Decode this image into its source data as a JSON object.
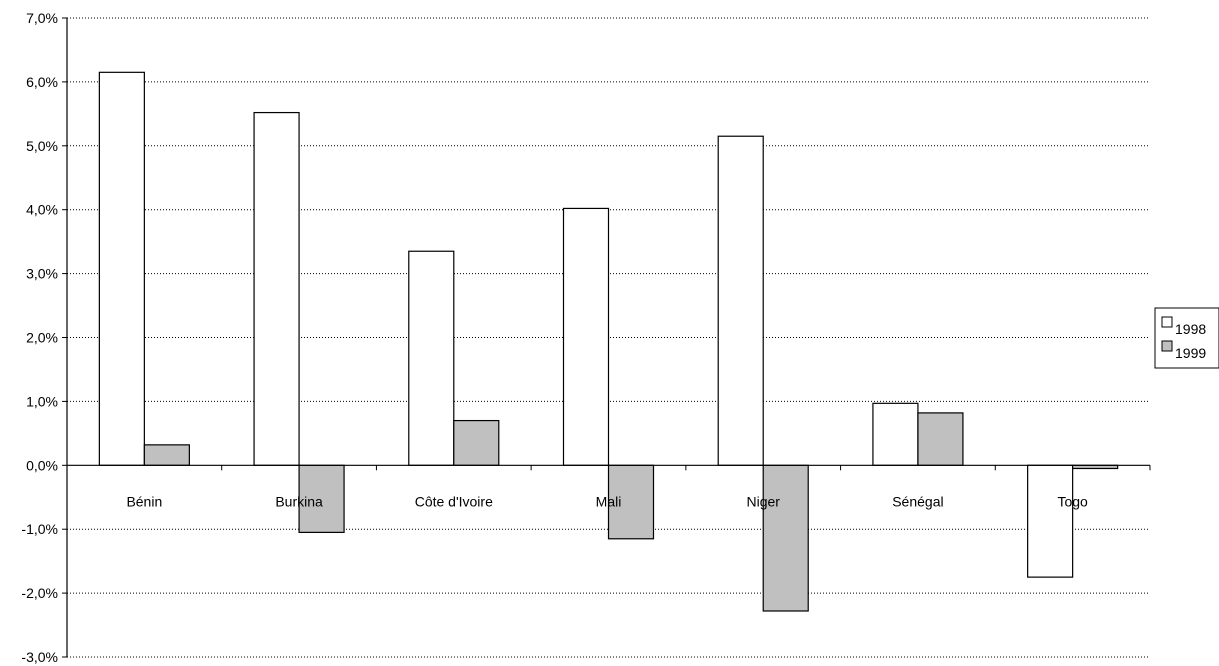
{
  "chart_data": {
    "type": "bar",
    "categories": [
      "Bénin",
      "Burkina",
      "Côte d'Ivoire",
      "Mali",
      "Niger",
      "Sénégal",
      "Togo"
    ],
    "series": [
      {
        "name": "1998",
        "values": [
          6.15,
          5.52,
          3.35,
          4.02,
          5.15,
          0.97,
          -1.75
        ],
        "color": "#ffffff"
      },
      {
        "name": "1999",
        "values": [
          0.32,
          -1.05,
          0.7,
          -1.15,
          -2.28,
          0.82,
          -0.05
        ],
        "color": "#c0c0c0"
      }
    ],
    "yticks": [
      "7,0%",
      "6,0%",
      "5,0%",
      "4,0%",
      "3,0%",
      "2,0%",
      "1,0%",
      "0,0%",
      "-1,0%",
      "-2,0%",
      "-3,0%"
    ],
    "ylim": [
      -3,
      7
    ],
    "grid": true,
    "legend_position": "right",
    "title": "",
    "xlabel": "",
    "ylabel": ""
  }
}
